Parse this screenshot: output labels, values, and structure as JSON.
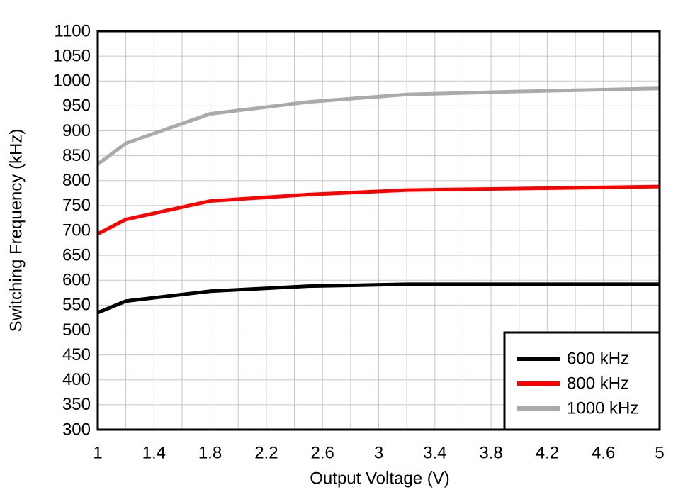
{
  "chart_data": {
    "type": "line",
    "x_label": "Output Voltage (V)",
    "y_label": "Switching Frequency (kHz)",
    "xlim": [
      1,
      5
    ],
    "ylim": [
      300,
      1100
    ],
    "xticks": [
      1,
      1.4,
      1.8,
      2.2,
      2.6,
      3,
      3.4,
      3.8,
      4.2,
      4.6,
      5
    ],
    "x_minor_grid": [
      1.2,
      1.6,
      2.0,
      2.4,
      2.8,
      3.2,
      3.6,
      4.0,
      4.4,
      4.8
    ],
    "yticks": [
      300,
      350,
      400,
      450,
      500,
      550,
      600,
      650,
      700,
      750,
      800,
      850,
      900,
      950,
      1000,
      1050,
      1100
    ],
    "grid": true,
    "legend": "lower right",
    "series": [
      {
        "name": "600 kHz",
        "color": "#000000",
        "x": [
          1,
          1.2,
          1.8,
          2.5,
          3.2,
          5
        ],
        "values": [
          535,
          558,
          578,
          588,
          592,
          592
        ]
      },
      {
        "name": "800 kHz",
        "color": "#ff0000",
        "x": [
          1,
          1.2,
          1.8,
          2.5,
          3.2,
          4,
          5
        ],
        "values": [
          693,
          722,
          759,
          772,
          781,
          784,
          788
        ]
      },
      {
        "name": "1000 kHz",
        "color": "#aaaaaa",
        "x": [
          1,
          1.2,
          1.8,
          2.5,
          3.2,
          4,
          5
        ],
        "values": [
          833,
          875,
          934,
          958,
          973,
          979,
          985
        ]
      }
    ]
  }
}
